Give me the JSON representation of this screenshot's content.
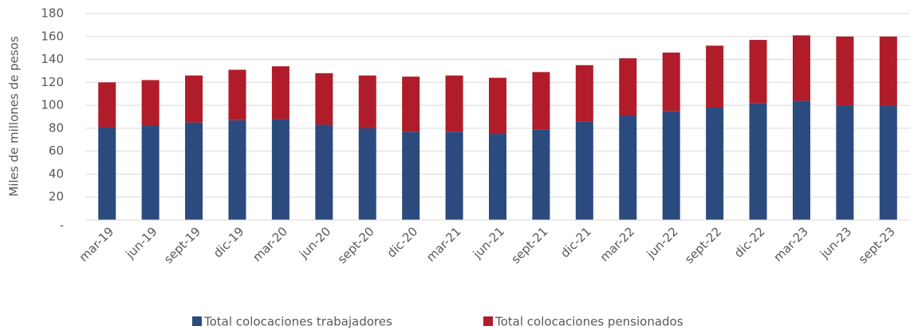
{
  "chart_data": {
    "type": "stacked_bar",
    "y_label": "Miles de millones de pesos",
    "categories": [
      "mar-19",
      "jun-19",
      "sept-19",
      "dic-19",
      "mar-20",
      "jun-20",
      "sept-20",
      "dic-20",
      "mar-21",
      "jun-21",
      "sept-21",
      "dic-21",
      "mar-22",
      "jun-22",
      "sept-22",
      "dic-22",
      "mar-23",
      "jun-23",
      "sept-23"
    ],
    "series": [
      {
        "name": "Total colocaciones trabajadores",
        "color": "#2b4a7e",
        "values": [
          81,
          82,
          85,
          87,
          88,
          83,
          80,
          77,
          77,
          75,
          79,
          86,
          91,
          95,
          98,
          102,
          104,
          100,
          100
        ]
      },
      {
        "name": "Total colocaciones pensionados",
        "color": "#b01c2a",
        "values": [
          39,
          40,
          41,
          44,
          46,
          45,
          46,
          48,
          49,
          49,
          50,
          49,
          50,
          51,
          54,
          55,
          57,
          60,
          60
        ]
      }
    ],
    "ylim": [
      0,
      180
    ],
    "yticks": [
      {
        "value": 0,
        "label": "-"
      },
      20,
      40,
      60,
      80,
      100,
      120,
      140,
      160,
      180
    ],
    "grid": true,
    "legend": "bottom"
  }
}
